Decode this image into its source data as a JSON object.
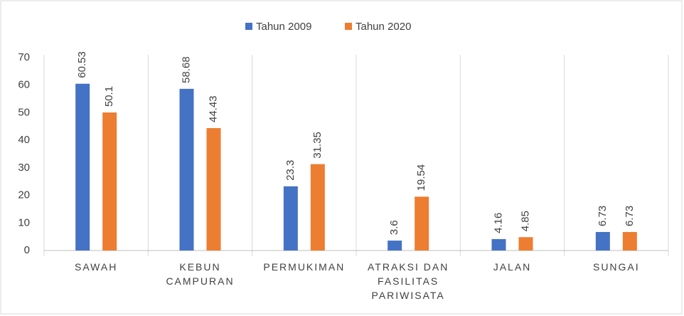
{
  "chart_data": {
    "type": "bar",
    "categories": [
      "SAWAH",
      "KEBUN CAMPURAN",
      "PERMUKIMAN",
      "ATRAKSI DAN FASILITAS PARIWISATA",
      "JALAN",
      "SUNGAI"
    ],
    "series": [
      {
        "name": "Tahun 2009",
        "color": "#4472c4",
        "values": [
          60.53,
          58.68,
          23.3,
          3.6,
          4.16,
          6.73
        ]
      },
      {
        "name": "Tahun 2020",
        "color": "#ed7d31",
        "values": [
          50.1,
          44.43,
          31.35,
          19.54,
          4.85,
          6.73
        ]
      }
    ],
    "ylim": [
      0,
      70
    ],
    "yticks": [
      0,
      10,
      20,
      30,
      40,
      50,
      60,
      70
    ],
    "legend": "top"
  }
}
